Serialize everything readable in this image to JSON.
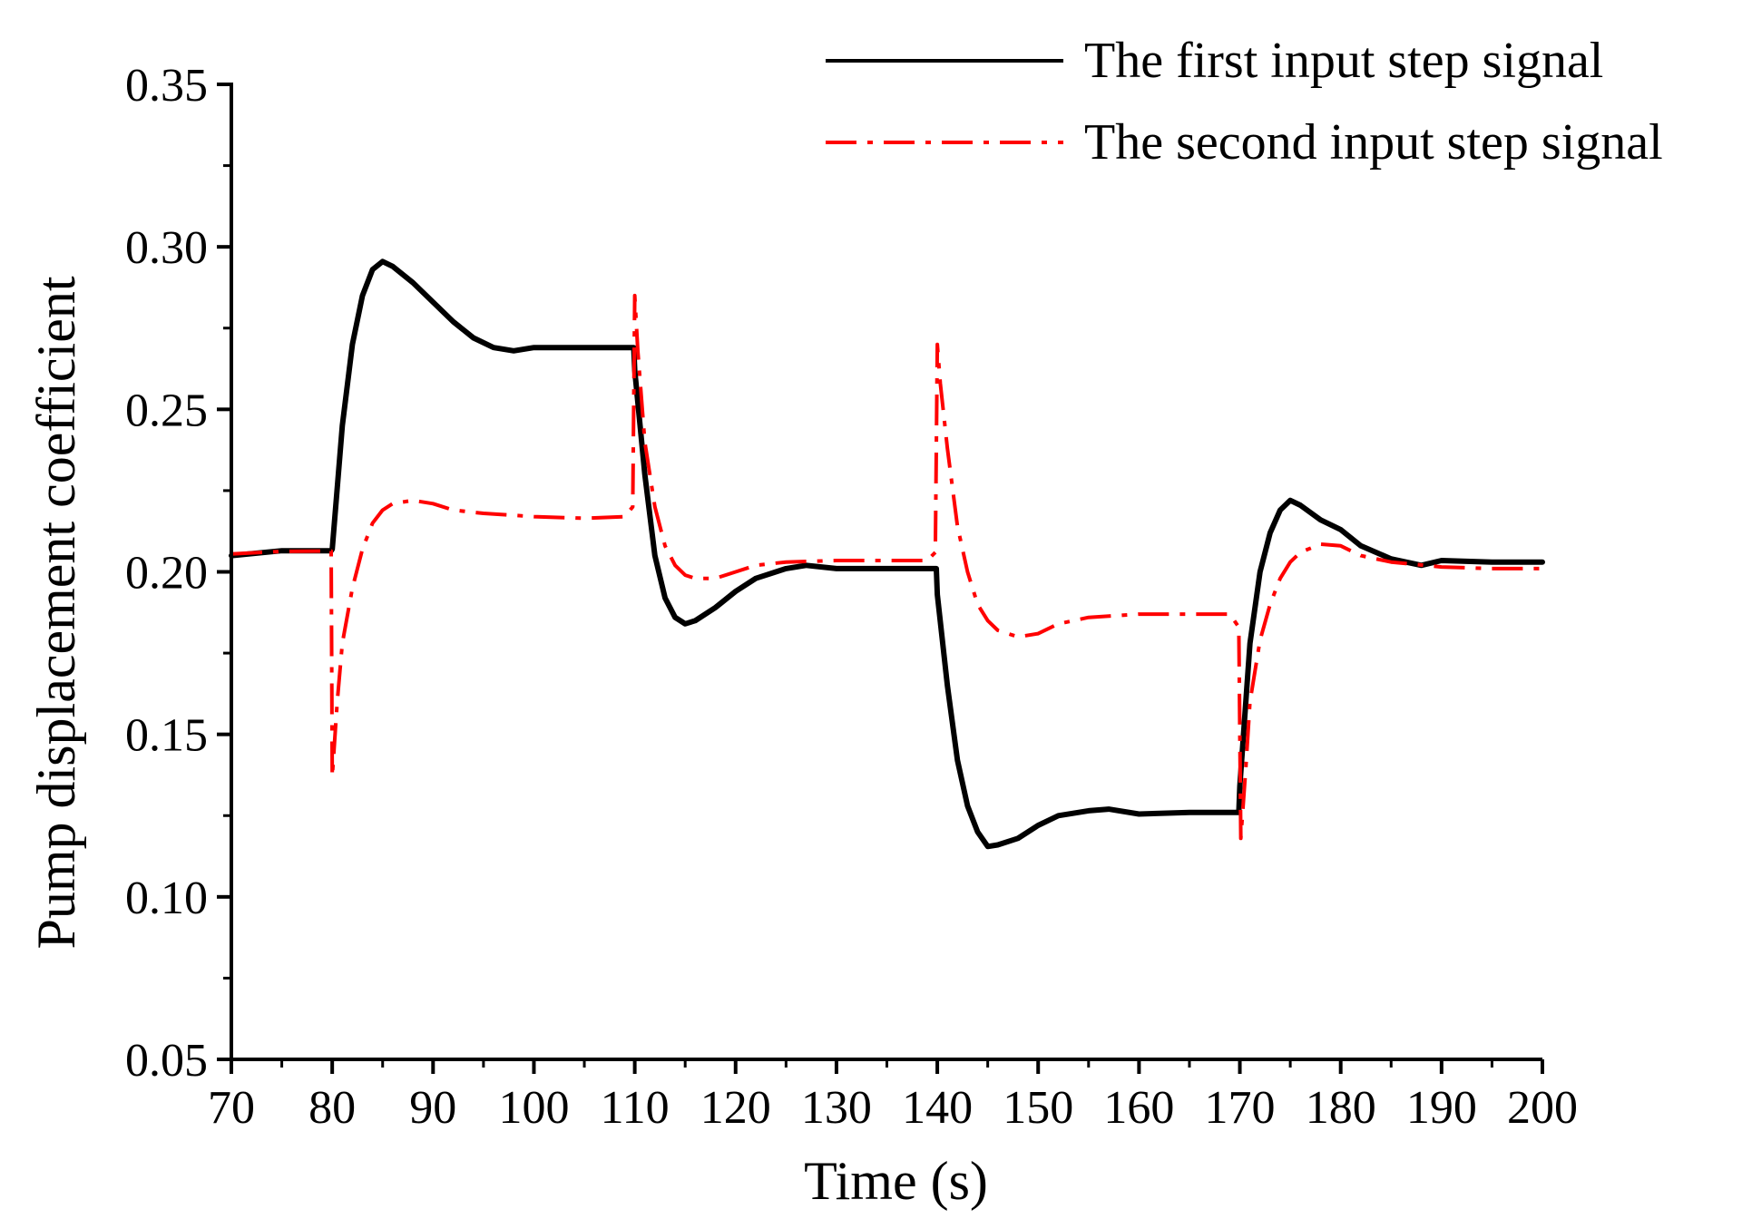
{
  "chart_data": {
    "type": "line",
    "title": "",
    "xlabel": "Time (s)",
    "ylabel": "Pump displacement coefficient",
    "xlim": [
      70,
      200
    ],
    "ylim": [
      0.05,
      0.35
    ],
    "xticks": [
      70,
      80,
      90,
      100,
      110,
      120,
      130,
      140,
      150,
      160,
      170,
      180,
      190,
      200
    ],
    "xtick_labels": [
      "70",
      "80",
      "90",
      "100",
      "110",
      "120",
      "130",
      "140",
      "150",
      "160",
      "170",
      "180",
      "190",
      "200"
    ],
    "yticks": [
      0.05,
      0.1,
      0.15,
      0.2,
      0.25,
      0.3,
      0.35
    ],
    "ytick_labels": [
      "0.05",
      "0.10",
      "0.15",
      "0.20",
      "0.25",
      "0.30",
      "0.35"
    ],
    "grid": false,
    "legend_position": "top-right",
    "series": [
      {
        "name": "The first input step signal",
        "color": "#000000",
        "style": "solid",
        "x": [
          70,
          75,
          79.9,
          80,
          81,
          82,
          83,
          84,
          85,
          86,
          88,
          90,
          92,
          94,
          96,
          98,
          100,
          105,
          109.9,
          110,
          111,
          112,
          113,
          114,
          115,
          116,
          118,
          120,
          122,
          125,
          127,
          130,
          135,
          139.9,
          140,
          141,
          142,
          143,
          144,
          145,
          146,
          148,
          150,
          152,
          155,
          157,
          160,
          165,
          169.9,
          170,
          171,
          172,
          173,
          174,
          175,
          176,
          178,
          180,
          182,
          185,
          188,
          190,
          195,
          200
        ],
        "y": [
          0.205,
          0.2065,
          0.2065,
          0.207,
          0.245,
          0.27,
          0.285,
          0.293,
          0.2955,
          0.294,
          0.289,
          0.283,
          0.277,
          0.272,
          0.269,
          0.268,
          0.269,
          0.269,
          0.269,
          0.262,
          0.23,
          0.205,
          0.192,
          0.186,
          0.184,
          0.185,
          0.189,
          0.194,
          0.198,
          0.201,
          0.202,
          0.201,
          0.201,
          0.201,
          0.193,
          0.165,
          0.142,
          0.128,
          0.12,
          0.1155,
          0.116,
          0.118,
          0.122,
          0.125,
          0.1265,
          0.127,
          0.1255,
          0.126,
          0.126,
          0.134,
          0.178,
          0.2,
          0.212,
          0.219,
          0.222,
          0.2205,
          0.216,
          0.213,
          0.208,
          0.204,
          0.202,
          0.2035,
          0.203,
          0.203
        ]
      },
      {
        "name": "The second input step signal",
        "color": "#ff0000",
        "style": "dash-dot",
        "x": [
          70,
          75,
          79.9,
          80,
          80.5,
          81,
          82,
          83,
          84,
          85,
          86,
          88,
          90,
          92,
          95,
          100,
          105,
          109,
          109.8,
          110,
          110.3,
          111,
          112,
          113,
          114,
          115,
          116,
          118,
          120,
          122,
          125,
          130,
          135,
          139,
          139.8,
          140,
          140.3,
          141,
          142,
          143,
          144,
          145,
          146,
          148,
          150,
          152,
          155,
          160,
          165,
          169,
          169.9,
          170.1,
          170.6,
          171,
          172,
          173,
          174,
          175,
          176,
          178,
          180,
          182,
          185,
          190,
          195,
          200
        ],
        "y": [
          0.2055,
          0.2063,
          0.2064,
          0.137,
          0.16,
          0.178,
          0.195,
          0.207,
          0.215,
          0.219,
          0.221,
          0.222,
          0.221,
          0.219,
          0.218,
          0.217,
          0.2165,
          0.217,
          0.22,
          0.285,
          0.268,
          0.24,
          0.22,
          0.208,
          0.202,
          0.199,
          0.198,
          0.198,
          0.2,
          0.202,
          0.203,
          0.2035,
          0.2035,
          0.2035,
          0.206,
          0.27,
          0.258,
          0.238,
          0.214,
          0.2,
          0.19,
          0.185,
          0.182,
          0.18,
          0.181,
          0.184,
          0.186,
          0.187,
          0.187,
          0.187,
          0.183,
          0.118,
          0.14,
          0.16,
          0.179,
          0.19,
          0.198,
          0.203,
          0.206,
          0.2085,
          0.208,
          0.205,
          0.203,
          0.2015,
          0.201,
          0.201
        ]
      }
    ]
  }
}
